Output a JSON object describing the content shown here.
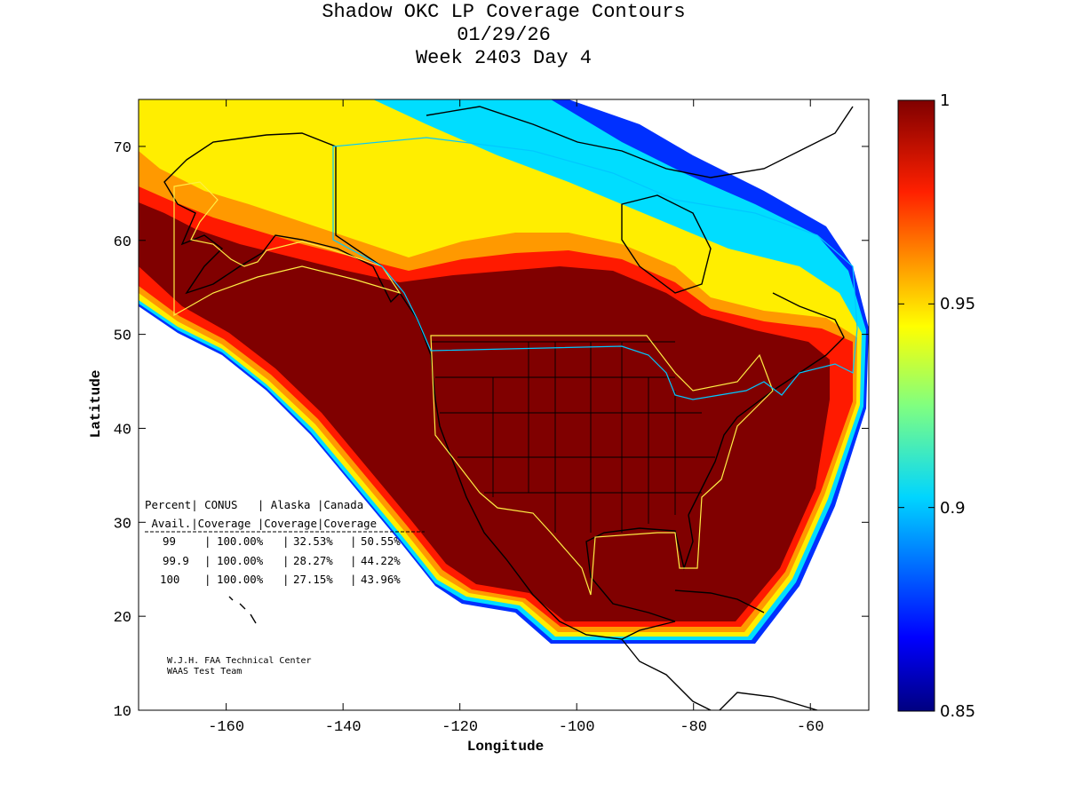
{
  "figure": {
    "title_lines": [
      "Shadow OKC LP Coverage Contours",
      "01/29/26",
      "Week 2403 Day 4"
    ],
    "xlabel": "Longitude",
    "ylabel": "Latitude",
    "xlim": [
      -175,
      -50
    ],
    "ylim": [
      10,
      75
    ],
    "xticks": [
      -160,
      -140,
      -120,
      -100,
      -80,
      -60
    ],
    "yticks": [
      10,
      20,
      30,
      40,
      50,
      60,
      70
    ],
    "credit_lines": [
      "W.J.H. FAA Technical Center",
      "WAAS Test Team"
    ]
  },
  "colorbar": {
    "min": 0.85,
    "max": 1,
    "ticks": [
      0.85,
      0.9,
      0.95,
      1
    ],
    "tick_labels": [
      "0.85",
      "0.9",
      "0.95",
      "1"
    ],
    "colormap": "jet"
  },
  "coverage_table": {
    "header1": "Percent| CONUS   | Alaska |Canada",
    "header2": " Avail.|Coverage |Coverage|Coverage",
    "rows": [
      {
        "percent": "99",
        "conus": "100.00%",
        "alaska": "32.53%",
        "canada": "50.55%"
      },
      {
        "percent": "99.9",
        "conus": "100.00%",
        "alaska": "28.27%",
        "canada": "44.22%"
      },
      {
        "percent": "100",
        "conus": "100.00%",
        "alaska": "27.15%",
        "canada": "43.96%"
      }
    ]
  },
  "colors": {
    "dark_red": "#800000",
    "red": "#ff0000",
    "orange": "#ff9900",
    "yellow": "#ffee00",
    "cyan": "#00e5ff",
    "blue": "#0040ff",
    "navy": "#000090",
    "service_boundary": "#ffee44",
    "canada_boundary": "#00c8ff"
  }
}
